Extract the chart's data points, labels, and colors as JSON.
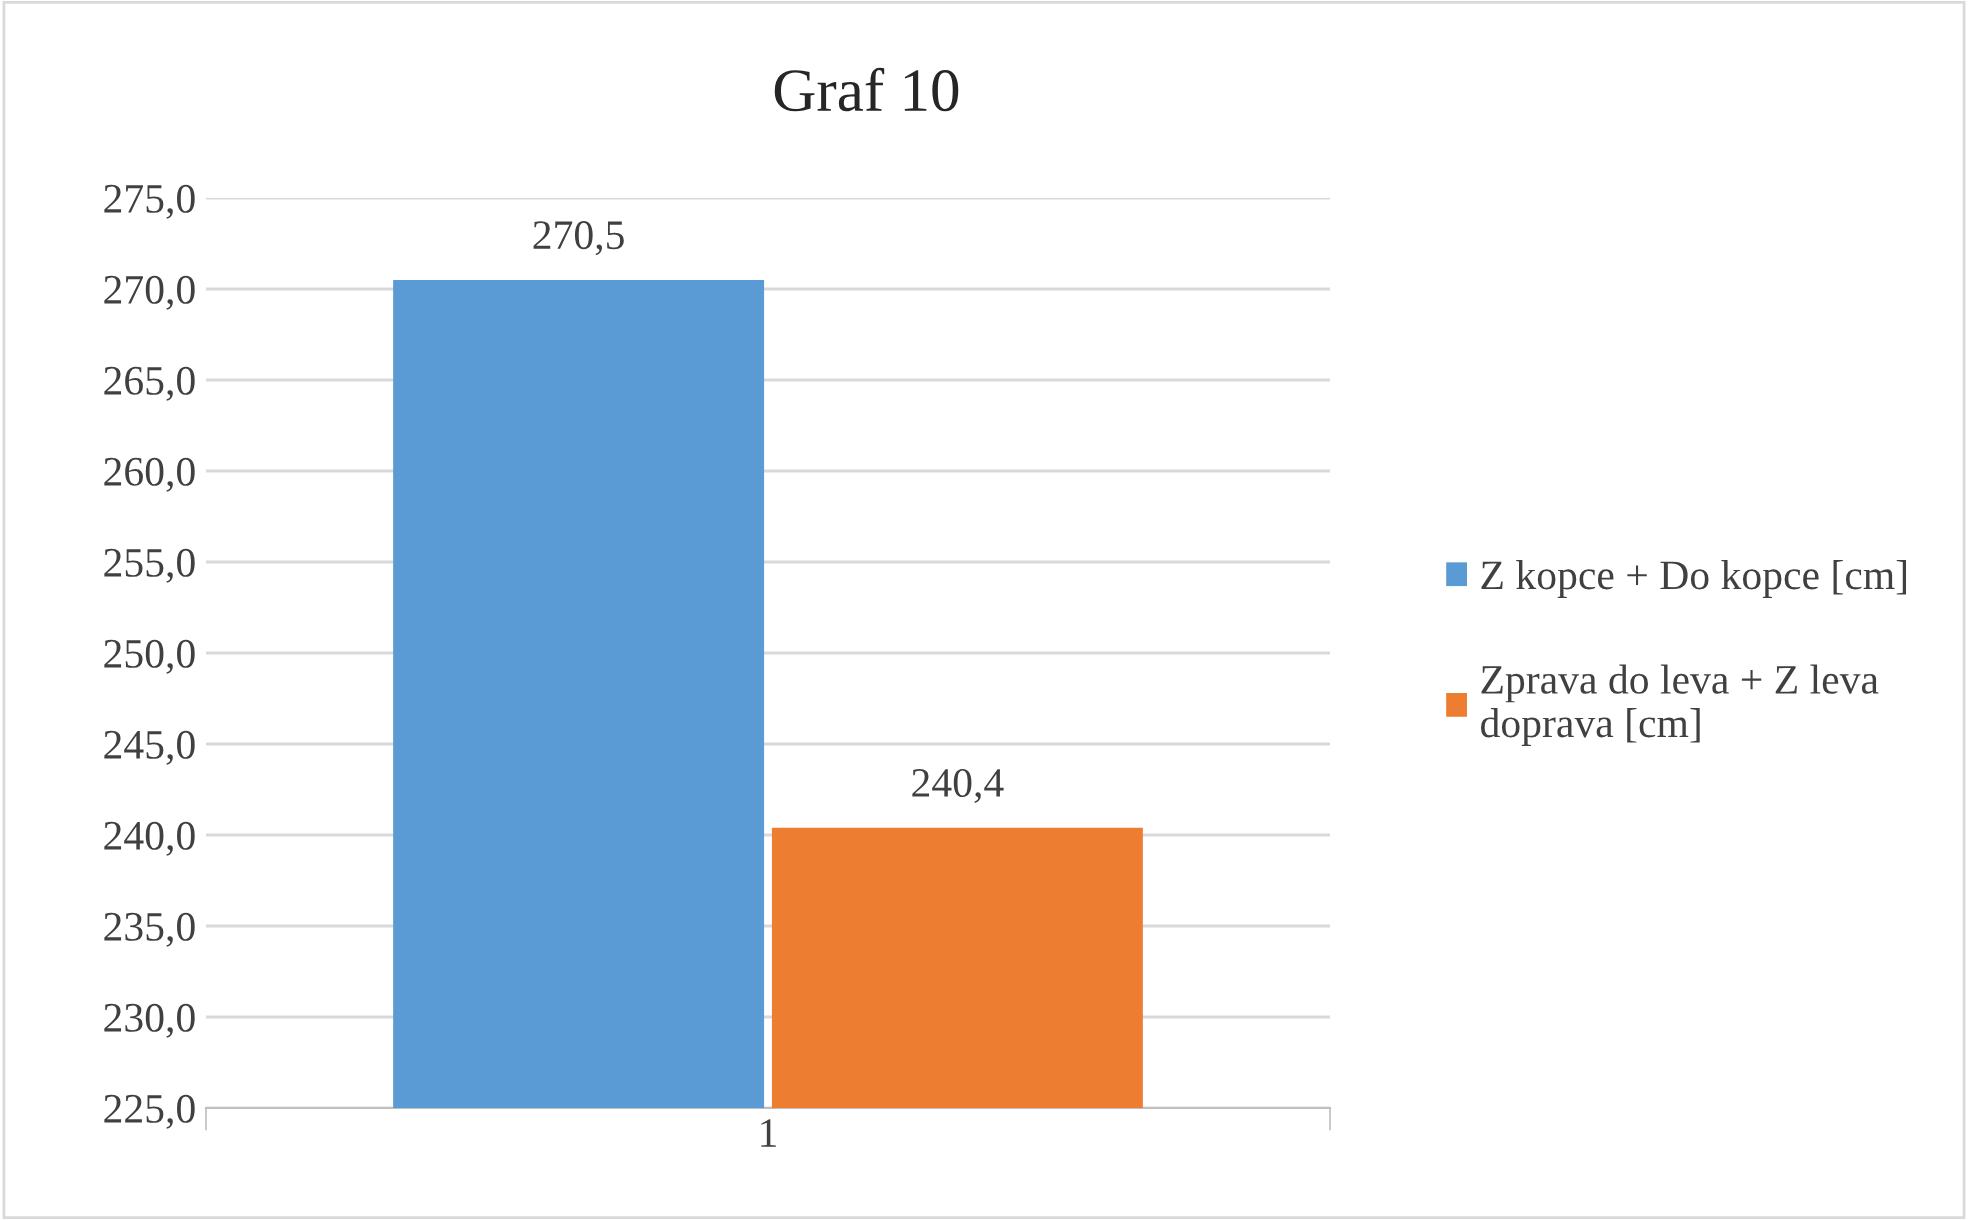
{
  "chart_data": {
    "type": "bar",
    "title": "Graf 10",
    "categories": [
      "1"
    ],
    "series": [
      {
        "name": "Z kopce + Do kopce [cm]",
        "color": "#5b9bd5",
        "values": [
          270.5
        ],
        "value_labels": [
          "270,5"
        ]
      },
      {
        "name": "Zprava do leva + Z leva doprava [cm]",
        "color": "#ed7d31",
        "values": [
          240.4
        ],
        "value_labels": [
          "240,4"
        ]
      }
    ],
    "ylim": [
      225,
      275
    ],
    "yticks": [
      {
        "value": 225,
        "label": "225,0"
      },
      {
        "value": 230,
        "label": "230,0"
      },
      {
        "value": 235,
        "label": "235,0"
      },
      {
        "value": 240,
        "label": "240,0"
      },
      {
        "value": 245,
        "label": "245,0"
      },
      {
        "value": 250,
        "label": "250,0"
      },
      {
        "value": 255,
        "label": "255,0"
      },
      {
        "value": 260,
        "label": "260,0"
      },
      {
        "value": 265,
        "label": "265,0"
      },
      {
        "value": 270,
        "label": "270,0"
      },
      {
        "value": 275,
        "label": "275,0"
      }
    ],
    "grid": "y",
    "legend": "right"
  }
}
